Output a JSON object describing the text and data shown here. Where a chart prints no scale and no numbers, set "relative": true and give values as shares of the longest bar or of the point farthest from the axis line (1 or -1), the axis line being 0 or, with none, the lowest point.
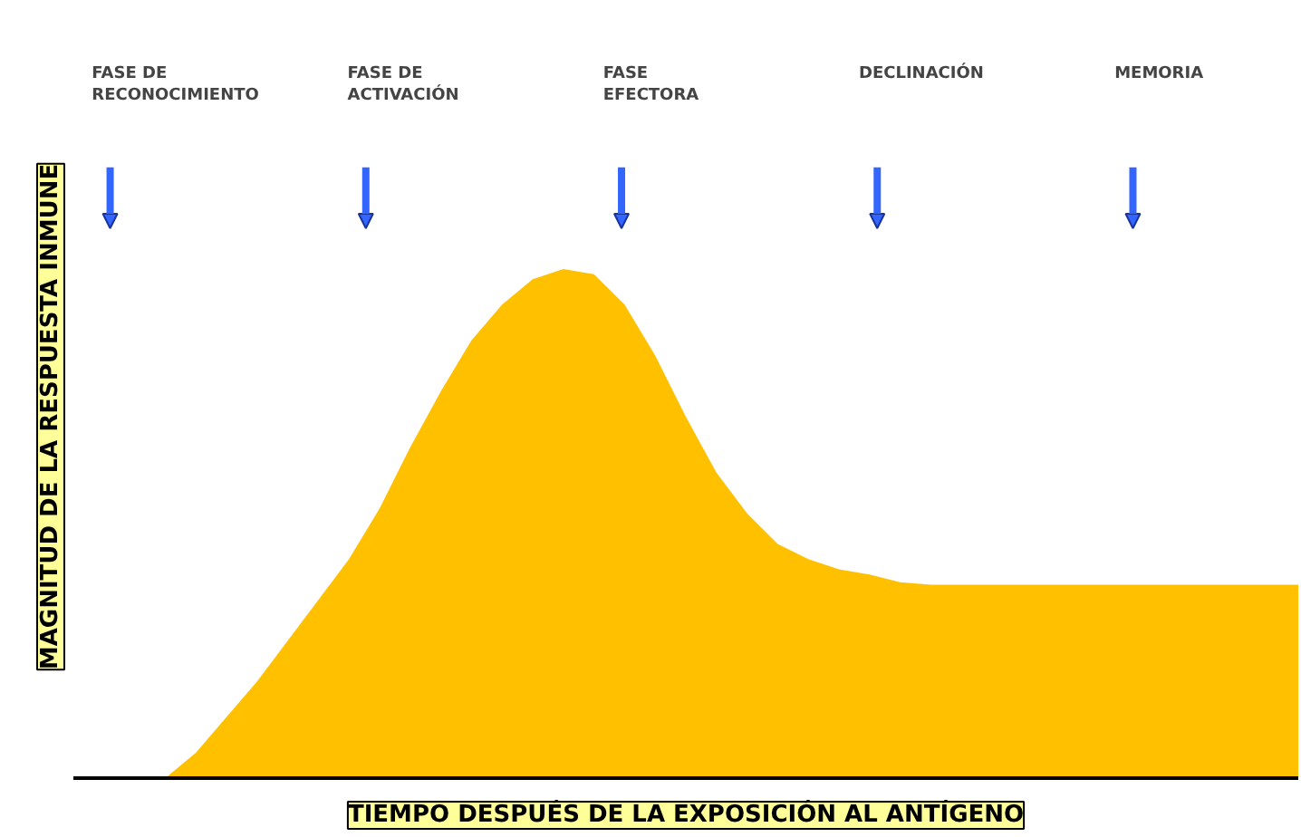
{
  "chart_data": {
    "type": "area",
    "relative": true,
    "xlabel": "TIEMPO DESPUÉS DE LA EXPOSICIÓN AL ANTÍGENO",
    "ylabel": "MAGNITUD DE LA RESPUESTA INMUNE",
    "categories": [
      null,
      null,
      null,
      null,
      null,
      null,
      null,
      null,
      null,
      null,
      null,
      null,
      null,
      null,
      null,
      null,
      null,
      null,
      null,
      null,
      null,
      null,
      null,
      null,
      null,
      null,
      null,
      null,
      null,
      null,
      null,
      null,
      null,
      null,
      null,
      null,
      null,
      null,
      null,
      null,
      null
    ],
    "series": [
      {
        "color": "#ffc000",
        "values": [
          0,
          0,
          0,
          0,
          0.05,
          0.12,
          0.19,
          0.27,
          0.35,
          0.43,
          0.53,
          0.65,
          0.76,
          0.86,
          0.93,
          0.98,
          1.0,
          0.99,
          0.93,
          0.83,
          0.71,
          0.6,
          0.52,
          0.46,
          0.43,
          0.41,
          0.4,
          0.385,
          0.38,
          0.38,
          0.38,
          0.38,
          0.38,
          0.38,
          0.38,
          0.38,
          0.38,
          0.38,
          0.38,
          0.38,
          0.38
        ]
      }
    ],
    "annotations": [
      "FASE DE\nRECONOCIMIENTO",
      "FASE DE\nACTIVACIÓN",
      "FASE\nEFECTORA",
      "DECLINACIÓN",
      "MEMORIA"
    ],
    "grid": false
  }
}
